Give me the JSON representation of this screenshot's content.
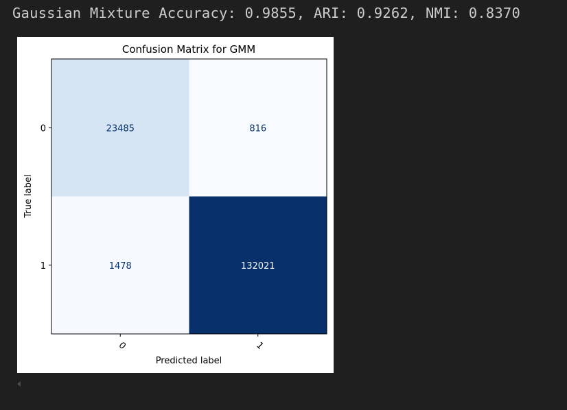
{
  "output": {
    "text": "Gaussian Mixture Accuracy: 0.9855, ARI: 0.9262, NMI: 0.8370"
  },
  "colors": {
    "background": "#1f1f1f",
    "text": "#cccccc",
    "cmap": "Blues"
  },
  "chart_data": {
    "type": "heatmap",
    "title": "Confusion Matrix for GMM",
    "xlabel": "Predicted label",
    "ylabel": "True label",
    "x_ticks": [
      "0",
      "1"
    ],
    "y_ticks": [
      "0",
      "1"
    ],
    "matrix": [
      [
        23485,
        816
      ],
      [
        1478,
        132021
      ]
    ],
    "colorbar": false
  }
}
